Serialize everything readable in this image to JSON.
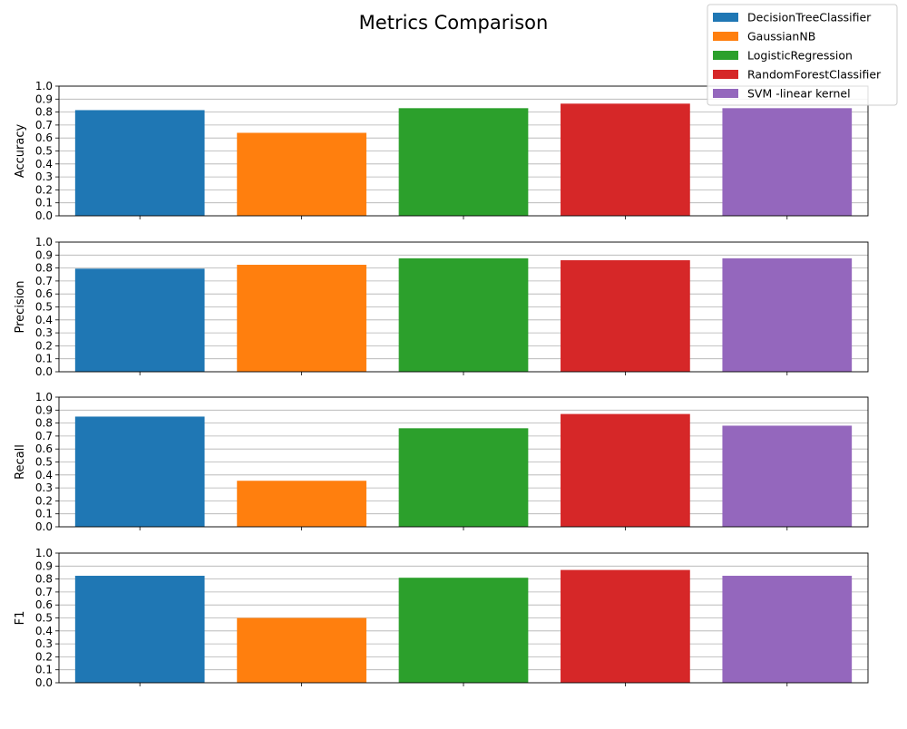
{
  "chart_data": {
    "type": "bar",
    "title": "Metrics Comparison",
    "categories": [
      "DecisionTreeClassifier",
      "GaussianNB",
      "LogisticRegression",
      "RandomForestClassifier",
      "SVM -linear kernel"
    ],
    "colors": [
      "#1f77b4",
      "#ff7f0e",
      "#2ca02c",
      "#d62728",
      "#9467bd"
    ],
    "legend": {
      "placement": "top-right",
      "entries": [
        "DecisionTreeClassifier",
        "GaussianNB",
        "LogisticRegression",
        "RandomForestClassifier",
        "SVM -linear kernel"
      ]
    },
    "grid": "y",
    "ylim": [
      0,
      1.0
    ],
    "yticks": [
      "0.0",
      "0.1",
      "0.2",
      "0.3",
      "0.4",
      "0.5",
      "0.6",
      "0.7",
      "0.8",
      "0.9",
      "1.0"
    ],
    "panels": [
      {
        "ylabel": "Accuracy",
        "values": [
          0.815,
          0.64,
          0.83,
          0.865,
          0.83
        ]
      },
      {
        "ylabel": "Precision",
        "values": [
          0.795,
          0.825,
          0.875,
          0.86,
          0.875
        ]
      },
      {
        "ylabel": "Recall",
        "values": [
          0.85,
          0.355,
          0.76,
          0.87,
          0.78
        ]
      },
      {
        "ylabel": "F1",
        "values": [
          0.825,
          0.5,
          0.81,
          0.87,
          0.825
        ]
      }
    ]
  }
}
